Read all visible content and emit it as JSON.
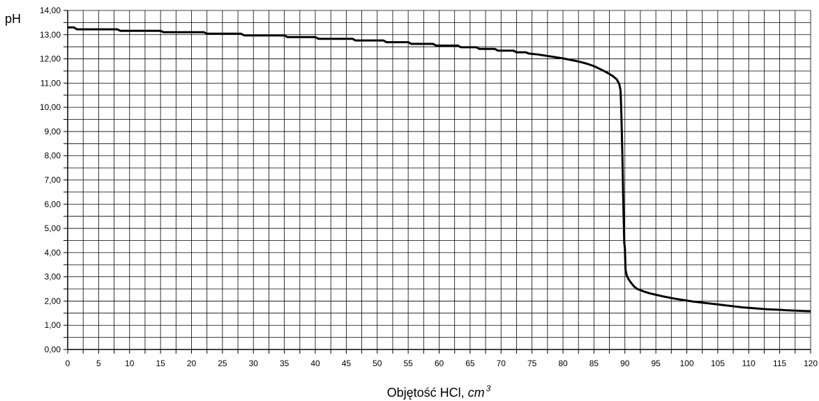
{
  "chart_data": {
    "type": "line",
    "title": "",
    "ylabel": "pH",
    "xlabel_text": "Objętość HCl, ",
    "xlabel_unit": "cm",
    "xlabel_exp": "3",
    "xlim": [
      0,
      120
    ],
    "ylim": [
      0,
      14
    ],
    "x_ticks": [
      "0",
      "5",
      "10",
      "15",
      "20",
      "25",
      "30",
      "35",
      "40",
      "45",
      "50",
      "55",
      "60",
      "65",
      "70",
      "75",
      "80",
      "85",
      "90",
      "95",
      "100",
      "105",
      "110",
      "115",
      "120"
    ],
    "y_ticks": [
      "0,00",
      "1,00",
      "2,00",
      "3,00",
      "4,00",
      "5,00",
      "6,00",
      "7,00",
      "8,00",
      "9,00",
      "10,00",
      "11,00",
      "12,00",
      "13,00",
      "14,00"
    ],
    "grid": true,
    "series": [
      {
        "x": [
          0,
          1,
          1.5,
          8,
          8.5,
          15,
          15.5,
          22,
          22.5,
          28,
          28.5,
          35,
          35.5,
          40,
          40.5,
          46,
          46.5,
          51,
          51.5,
          55,
          55.5,
          59,
          59.5,
          63,
          63.5,
          66,
          66.5,
          69,
          69.5,
          72,
          72.5,
          74,
          74.5,
          76,
          77,
          78,
          79,
          80,
          81,
          82,
          83,
          84,
          85,
          86,
          87,
          88,
          88.7,
          89.1,
          89.3,
          89.4,
          89.5,
          89.6,
          89.75,
          89.9,
          90.0,
          90.1,
          90.3,
          90.6,
          91,
          91.5,
          92,
          93,
          94,
          95,
          96,
          97,
          98,
          99,
          100,
          101,
          102,
          103,
          104,
          105,
          106,
          107,
          108,
          109,
          110,
          111,
          112,
          113,
          114,
          115,
          116,
          117,
          118,
          119,
          120
        ],
        "y": [
          13.3,
          13.3,
          13.22,
          13.22,
          13.16,
          13.16,
          13.1,
          13.1,
          13.04,
          13.04,
          12.97,
          12.97,
          12.9,
          12.9,
          12.83,
          12.83,
          12.76,
          12.76,
          12.69,
          12.69,
          12.62,
          12.62,
          12.55,
          12.55,
          12.48,
          12.48,
          12.41,
          12.41,
          12.34,
          12.34,
          12.27,
          12.27,
          12.22,
          12.18,
          12.14,
          12.1,
          12.06,
          12.02,
          11.97,
          11.92,
          11.86,
          11.79,
          11.7,
          11.58,
          11.45,
          11.3,
          11.15,
          10.95,
          10.7,
          10.0,
          9.0,
          8.0,
          6.0,
          4.4,
          4.2,
          3.3,
          3.05,
          2.9,
          2.75,
          2.6,
          2.5,
          2.4,
          2.32,
          2.26,
          2.2,
          2.15,
          2.1,
          2.06,
          2.02,
          1.98,
          1.95,
          1.92,
          1.89,
          1.86,
          1.83,
          1.8,
          1.77,
          1.74,
          1.72,
          1.7,
          1.68,
          1.66,
          1.65,
          1.64,
          1.62,
          1.61,
          1.6,
          1.59,
          1.58
        ]
      }
    ]
  }
}
